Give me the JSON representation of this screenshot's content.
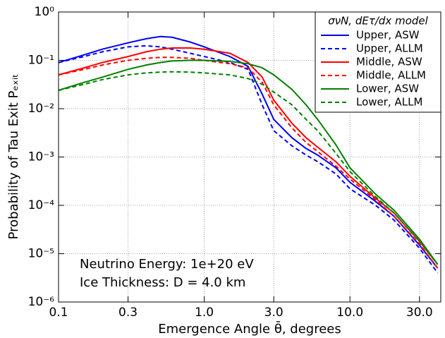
{
  "chart_data": {
    "type": "line",
    "xlabel": "Emergence Angle θ̄, degrees",
    "ylabel": "Probability of Tau Exit Pₑₓᵢₜ",
    "annotations": [
      "Neutrino Energy: 1e+20 eV",
      "Ice Thickness: D = 4.0 km"
    ],
    "legend_title": "σνN, dEτ/dx model",
    "legend_loc": "upper right",
    "xscale": "log",
    "yscale": "log",
    "grid": true,
    "xlim": [
      0.1,
      42
    ],
    "ylim": [
      1e-06,
      1
    ],
    "xticks": [
      0.1,
      0.3,
      {
        "value": 1,
        "label": "1.0"
      },
      {
        "value": 3,
        "label": "3.0"
      },
      {
        "value": 10,
        "label": "10.0"
      },
      {
        "value": 30,
        "label": "30.0"
      }
    ],
    "yticks": [
      {
        "value": 1e-06,
        "label": "10⁻⁶"
      },
      {
        "value": 1e-05,
        "label": "10⁻⁵"
      },
      {
        "value": 0.0001,
        "label": "10⁻⁴"
      },
      {
        "value": 0.001,
        "label": "10⁻³"
      },
      {
        "value": 0.01,
        "label": "10⁻²"
      },
      {
        "value": 0.1,
        "label": "10⁻¹"
      },
      {
        "value": 1,
        "label": "10⁰"
      }
    ],
    "x": [
      0.1,
      0.15,
      0.2,
      0.3,
      0.4,
      0.5,
      0.6,
      0.8,
      1,
      1.5,
      2,
      2.5,
      3,
      4,
      5,
      6,
      8,
      10,
      15,
      20,
      30,
      40
    ],
    "series": [
      {
        "name": "Upper, ASW",
        "color": "#0000ff",
        "dash": false,
        "values": [
          0.09,
          0.13,
          0.17,
          0.23,
          0.28,
          0.31,
          0.3,
          0.24,
          0.19,
          0.12,
          0.075,
          0.02,
          0.006,
          0.0025,
          0.0015,
          0.0011,
          0.0006,
          0.0003,
          0.00012,
          6e-05,
          1.5e-05,
          5e-06
        ]
      },
      {
        "name": "Upper, ALLM",
        "color": "#0000ff",
        "dash": true,
        "values": [
          0.09,
          0.12,
          0.15,
          0.19,
          0.2,
          0.19,
          0.17,
          0.14,
          0.12,
          0.09,
          0.065,
          0.012,
          0.0035,
          0.0017,
          0.0011,
          0.0008,
          0.00045,
          0.00022,
          0.0001,
          5e-05,
          1.3e-05,
          4e-06
        ]
      },
      {
        "name": "Middle, ASW",
        "color": "#ff0000",
        "dash": false,
        "values": [
          0.05,
          0.07,
          0.09,
          0.12,
          0.15,
          0.17,
          0.18,
          0.18,
          0.17,
          0.14,
          0.09,
          0.045,
          0.015,
          0.005,
          0.0025,
          0.0016,
          0.0008,
          0.0004,
          0.00014,
          7e-05,
          1.8e-05,
          6e-06
        ]
      },
      {
        "name": "Middle, ALLM",
        "color": "#ff0000",
        "dash": true,
        "values": [
          0.05,
          0.065,
          0.08,
          0.1,
          0.11,
          0.115,
          0.115,
          0.11,
          0.1,
          0.085,
          0.07,
          0.035,
          0.012,
          0.004,
          0.002,
          0.0013,
          0.00065,
          0.00035,
          0.00013,
          6e-05,
          1.6e-05,
          5e-06
        ]
      },
      {
        "name": "Lower, ASW",
        "color": "#008000",
        "dash": false,
        "values": [
          0.024,
          0.035,
          0.045,
          0.065,
          0.08,
          0.09,
          0.097,
          0.1,
          0.1,
          0.095,
          0.085,
          0.07,
          0.05,
          0.025,
          0.012,
          0.006,
          0.0018,
          0.0006,
          0.00017,
          8e-05,
          2e-05,
          6e-06
        ]
      },
      {
        "name": "Lower, ALLM",
        "color": "#008000",
        "dash": true,
        "values": [
          0.024,
          0.032,
          0.04,
          0.05,
          0.055,
          0.057,
          0.058,
          0.057,
          0.055,
          0.05,
          0.042,
          0.032,
          0.022,
          0.012,
          0.006,
          0.0035,
          0.0012,
          0.0005,
          0.00015,
          7e-05,
          1.8e-05,
          6e-06
        ]
      }
    ]
  }
}
